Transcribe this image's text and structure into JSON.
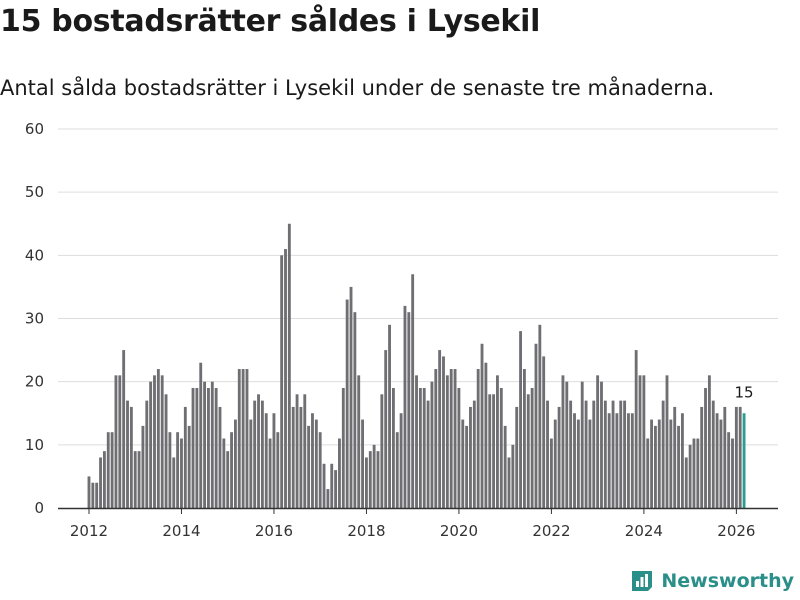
{
  "header": {
    "title": "15 bostadsrätter såldes i Lysekil",
    "subtitle": "Antal sålda bostadsrätter i Lysekil under de senaste tre månaderna."
  },
  "brand": {
    "name": "Newsworthy",
    "color": "#2a8f88"
  },
  "colors": {
    "bar": "#6e6e73",
    "highlight": "#2a9d8f",
    "grid": "#dddddd"
  },
  "chart_data": {
    "type": "bar",
    "title": "15 bostadsrätter såldes i Lysekil",
    "subtitle": "Antal sålda bostadsrätter i Lysekil under de senaste tre månaderna.",
    "xlabel": "",
    "ylabel": "",
    "ylim": [
      0,
      60
    ],
    "yticks": [
      "0",
      "10",
      "20",
      "30",
      "40",
      "50",
      "60"
    ],
    "xticks": [
      "2012",
      "2014",
      "2016",
      "2018",
      "2020",
      "2022",
      "2024",
      "2026"
    ],
    "xlim": [
      2011.33,
      2026.9
    ],
    "start": 2012.0,
    "step": 0.08333,
    "grid": true,
    "legend": "none",
    "highlight_label": "15",
    "values": [
      5,
      4,
      4,
      8,
      9,
      12,
      12,
      21,
      21,
      25,
      17,
      16,
      9,
      9,
      13,
      17,
      20,
      21,
      22,
      21,
      18,
      12,
      8,
      12,
      11,
      16,
      13,
      19,
      19,
      23,
      20,
      19,
      20,
      19,
      16,
      11,
      9,
      12,
      14,
      22,
      22,
      22,
      14,
      17,
      18,
      17,
      15,
      11,
      15,
      12,
      40,
      41,
      45,
      16,
      18,
      16,
      18,
      13,
      15,
      14,
      12,
      7,
      3,
      7,
      6,
      11,
      19,
      33,
      35,
      31,
      21,
      14,
      8,
      9,
      10,
      9,
      18,
      25,
      29,
      19,
      12,
      15,
      32,
      31,
      37,
      21,
      19,
      19,
      17,
      20,
      22,
      25,
      24,
      21,
      22,
      22,
      19,
      14,
      13,
      16,
      17,
      22,
      26,
      23,
      18,
      18,
      21,
      19,
      13,
      8,
      10,
      16,
      28,
      22,
      18,
      19,
      26,
      29,
      24,
      17,
      11,
      14,
      16,
      21,
      20,
      17,
      15,
      14,
      20,
      17,
      14,
      17,
      21,
      20,
      17,
      15,
      17,
      15,
      17,
      17,
      15,
      15,
      25,
      21,
      21,
      11,
      14,
      13,
      14,
      17,
      21,
      14,
      16,
      13,
      15,
      8,
      10,
      11,
      11,
      16,
      19,
      21,
      17,
      15,
      14,
      16,
      12,
      11,
      16,
      16,
      15
    ]
  }
}
